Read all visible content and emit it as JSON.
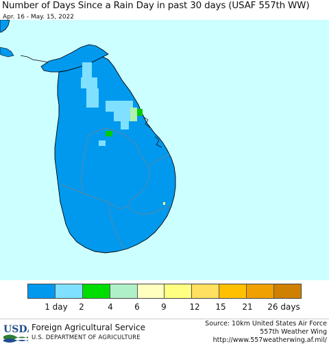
{
  "title": "Number of Days Since a Rain Day in past 30 days (USAF 557th WW)",
  "date_range": "Apr. 16 - May. 15, 2022",
  "colors": {
    "ocean": "#ccffff",
    "land_main": "#0099ee",
    "land_light": "#80e0ff",
    "green": "#00cc00",
    "pale_green": "#b0f0b0",
    "coast": "#000000",
    "border": "#808080"
  },
  "legend": {
    "colors": [
      "#0099ee",
      "#80e0ff",
      "#00dd00",
      "#b0f0c8",
      "#ffffc0",
      "#ffff80",
      "#ffe060",
      "#ffc000",
      "#f0a000",
      "#d08000"
    ],
    "labels": [
      "1 day",
      "2",
      "4",
      "6",
      "9",
      "12",
      "15",
      "21",
      "26 days"
    ]
  },
  "footer": {
    "logo_text": "USDA",
    "agency": "Foreign Agricultural Service",
    "department": "U.S. DEPARTMENT OF AGRICULTURE",
    "source_lines": [
      "Source: 10km United States Air Force",
      "557th Weather Wing",
      "http://www.557weatherwing.af.mil/"
    ]
  }
}
